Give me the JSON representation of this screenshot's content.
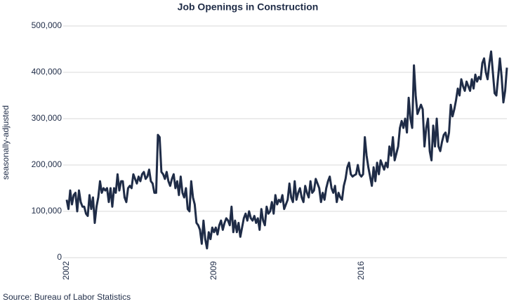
{
  "chart_data": {
    "type": "line",
    "title": "Job Openings in Construction",
    "y_label": "seasonally-adjusted",
    "source": "Source: Bureau of Labor Statistics",
    "categories": [
      "2002",
      null,
      null,
      null,
      null,
      null,
      null,
      null,
      null,
      null,
      null,
      null,
      null,
      null,
      null,
      null,
      null,
      null,
      null,
      null,
      null,
      null,
      null,
      null,
      null,
      null,
      null,
      null,
      null,
      null,
      null,
      null,
      null,
      null,
      null,
      null,
      null,
      null,
      null,
      null,
      null,
      null,
      null,
      null,
      null,
      null,
      null,
      null,
      null,
      null,
      null,
      null,
      null,
      null,
      null,
      null,
      null,
      null,
      null,
      null,
      null,
      null,
      null,
      null,
      null,
      null,
      null,
      null,
      null,
      null,
      null,
      null,
      null,
      null,
      null,
      null,
      null,
      null,
      null,
      null,
      null,
      null,
      null,
      null,
      "2009",
      null,
      null,
      null,
      null,
      null,
      null,
      null,
      null,
      null,
      null,
      null,
      null,
      null,
      null,
      null,
      null,
      null,
      null,
      null,
      null,
      null,
      null,
      null,
      null,
      null,
      null,
      null,
      null,
      null,
      null,
      null,
      null,
      null,
      null,
      null,
      null,
      null,
      null,
      null,
      null,
      null,
      null,
      null,
      null,
      null,
      null,
      null,
      null,
      null,
      null,
      null,
      null,
      null,
      null,
      null,
      null,
      null,
      null,
      null,
      null,
      null,
      null,
      null,
      null,
      null,
      null,
      null,
      null,
      null,
      null,
      null,
      null,
      null,
      null,
      null,
      null,
      null,
      null,
      null,
      null,
      null,
      null,
      null,
      "2016",
      null,
      null,
      null,
      null,
      null,
      null,
      null,
      null,
      null,
      null,
      null,
      null,
      null,
      null,
      null,
      null,
      null,
      null,
      null,
      null,
      null,
      null,
      null,
      null,
      null,
      null,
      null,
      null,
      null,
      null,
      null,
      null,
      null,
      null,
      null,
      null,
      null,
      null,
      null,
      null,
      null,
      null,
      null,
      null,
      null,
      null,
      null,
      null,
      null,
      null,
      null,
      null,
      null,
      null,
      null,
      null,
      null,
      null,
      null,
      null,
      null,
      null,
      null,
      null,
      null,
      null,
      null,
      null,
      null,
      null,
      null,
      null,
      null,
      null,
      null,
      null,
      null,
      null,
      null,
      null,
      null,
      null,
      null
    ],
    "series": [
      {
        "name": "Job openings",
        "color": "#1f2c47",
        "values": [
          125000,
          105000,
          145000,
          115000,
          135000,
          140000,
          100000,
          145000,
          120000,
          110000,
          110000,
          95000,
          90000,
          135000,
          105000,
          130000,
          75000,
          110000,
          130000,
          165000,
          140000,
          150000,
          145000,
          150000,
          120000,
          150000,
          110000,
          150000,
          140000,
          180000,
          145000,
          165000,
          165000,
          130000,
          120000,
          150000,
          155000,
          150000,
          180000,
          170000,
          160000,
          175000,
          165000,
          180000,
          185000,
          170000,
          175000,
          190000,
          165000,
          160000,
          140000,
          140000,
          265000,
          260000,
          185000,
          180000,
          170000,
          185000,
          165000,
          155000,
          170000,
          180000,
          150000,
          165000,
          135000,
          175000,
          140000,
          130000,
          150000,
          105000,
          100000,
          165000,
          130000,
          115000,
          75000,
          70000,
          60000,
          30000,
          80000,
          40000,
          20000,
          55000,
          40000,
          65000,
          55000,
          65000,
          50000,
          70000,
          80000,
          60000,
          75000,
          85000,
          80000,
          70000,
          110000,
          55000,
          80000,
          55000,
          75000,
          45000,
          65000,
          85000,
          95000,
          80000,
          100000,
          85000,
          80000,
          90000,
          75000,
          85000,
          60000,
          105000,
          80000,
          70000,
          110000,
          95000,
          100000,
          120000,
          95000,
          135000,
          115000,
          125000,
          120000,
          135000,
          105000,
          115000,
          125000,
          160000,
          130000,
          120000,
          165000,
          125000,
          140000,
          150000,
          130000,
          120000,
          155000,
          140000,
          130000,
          165000,
          140000,
          145000,
          170000,
          160000,
          150000,
          120000,
          140000,
          125000,
          150000,
          165000,
          175000,
          150000,
          140000,
          155000,
          120000,
          140000,
          130000,
          125000,
          155000,
          170000,
          195000,
          205000,
          180000,
          175000,
          178000,
          180000,
          200000,
          180000,
          175000,
          180000,
          260000,
          220000,
          195000,
          175000,
          155000,
          195000,
          165000,
          205000,
          180000,
          210000,
          200000,
          190000,
          205000,
          195000,
          240000,
          220000,
          260000,
          210000,
          225000,
          240000,
          280000,
          295000,
          280000,
          300000,
          270000,
          345000,
          300000,
          280000,
          415000,
          350000,
          310000,
          320000,
          330000,
          320000,
          240000,
          280000,
          300000,
          230000,
          210000,
          285000,
          240000,
          300000,
          240000,
          230000,
          250000,
          265000,
          270000,
          250000,
          270000,
          330000,
          305000,
          320000,
          340000,
          365000,
          350000,
          385000,
          370000,
          360000,
          380000,
          370000,
          360000,
          385000,
          365000,
          395000,
          380000,
          390000,
          385000,
          420000,
          430000,
          400000,
          385000,
          420000,
          445000,
          400000,
          355000,
          350000,
          390000,
          430000,
          390000,
          335000,
          360000,
          410000
        ]
      }
    ],
    "ylim": [
      0,
      500000
    ],
    "yticks": [
      0,
      {
        "value": 100000,
        "label": "100,000"
      },
      {
        "value": 200000,
        "label": "200,000"
      },
      {
        "value": 300000,
        "label": "300,000"
      },
      {
        "value": 400000,
        "label": "400,000"
      },
      {
        "value": 500000,
        "label": "500,000"
      }
    ],
    "grid": true
  }
}
